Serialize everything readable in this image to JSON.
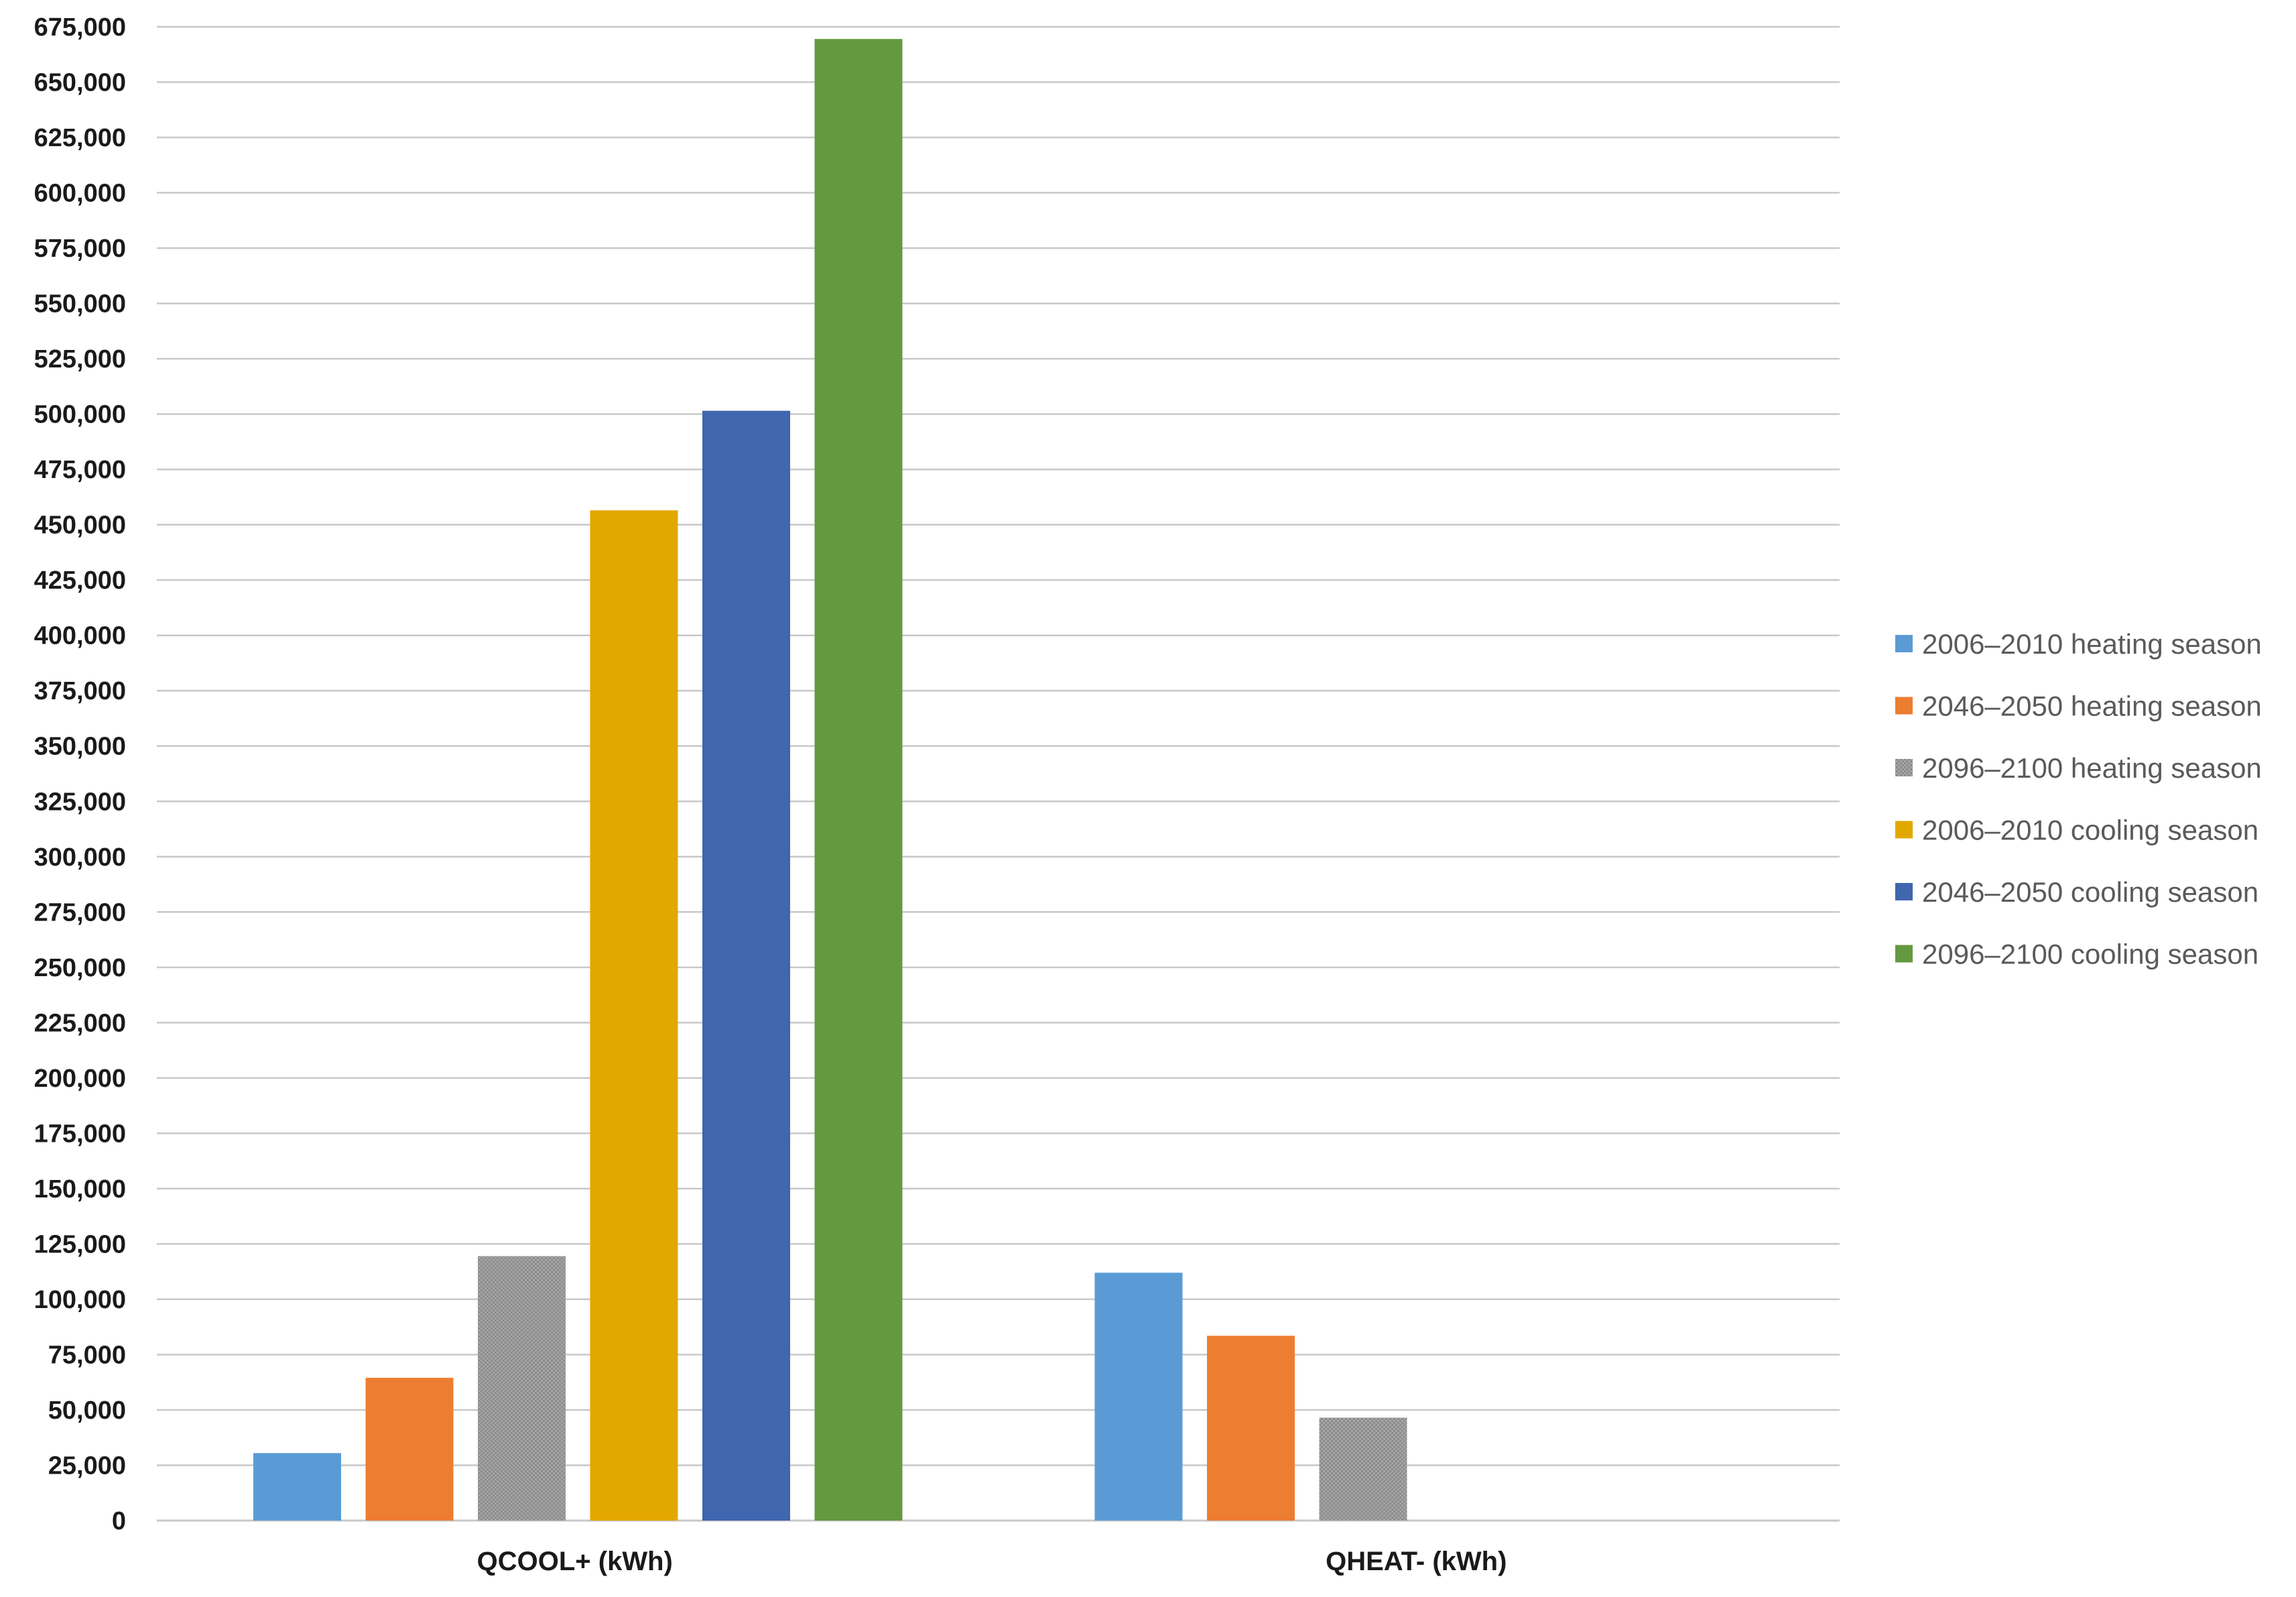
{
  "chart_data": {
    "type": "bar",
    "categories": [
      "QCOOL+ (kWh)",
      "QHEAT- (kWh)"
    ],
    "series": [
      {
        "name": "2006–2010 heating season",
        "color": "#5b9bd5",
        "pattern": "solid",
        "values": [
          30500,
          112000
        ]
      },
      {
        "name": "2046–2050 heating season",
        "color": "#ed7d31",
        "pattern": "solid",
        "values": [
          64500,
          83500
        ]
      },
      {
        "name": "2096–2100 heating season",
        "color": "#a5a5a5",
        "pattern": "dotted",
        "values": [
          119500,
          46500
        ]
      },
      {
        "name": "2006–2010 cooling season",
        "color": "#e3a800",
        "pattern": "solid",
        "values": [
          456500,
          0
        ]
      },
      {
        "name": "2046–2050 cooling season",
        "color": "#3f66ae",
        "pattern": "solid",
        "values": [
          501500,
          0
        ]
      },
      {
        "name": "2096–2100 cooling season",
        "color": "#64993f",
        "pattern": "solid",
        "values": [
          669500,
          0
        ]
      }
    ],
    "ylim": [
      0,
      675000
    ],
    "ytick_step": 25000,
    "yticks": [
      "0",
      "25,000",
      "50,000",
      "75,000",
      "100,000",
      "125,000",
      "150,000",
      "175,000",
      "200,000",
      "225,000",
      "250,000",
      "275,000",
      "300,000",
      "325,000",
      "350,000",
      "375,000",
      "400,000",
      "425,000",
      "450,000",
      "475,000",
      "500,000",
      "525,000",
      "550,000",
      "575,000",
      "600,000",
      "625,000",
      "650,000",
      "675,000"
    ],
    "title": "",
    "xlabel": "",
    "ylabel": "",
    "grid": true,
    "gridline_color": "#c8c8c8",
    "legend_position": "right"
  }
}
